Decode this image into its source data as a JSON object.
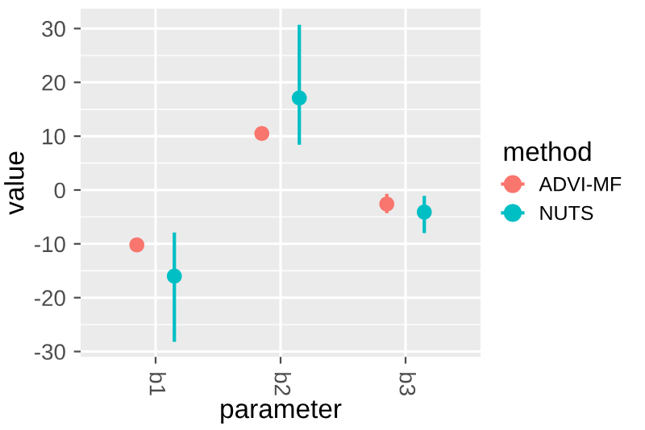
{
  "chart_data": {
    "type": "scatter",
    "xlabel": "parameter",
    "ylabel": "value",
    "legend_title": "method",
    "categories": [
      "b1",
      "b2",
      "b3"
    ],
    "series": [
      {
        "name": "ADVI-MF",
        "color": "#f8766d",
        "values": [
          -10.2,
          10.5,
          -2.6
        ],
        "errors": [
          null,
          null,
          [
            -4.3,
            -0.7
          ]
        ]
      },
      {
        "name": "NUTS",
        "color": "#00bfc4",
        "values": [
          -16.0,
          17.1,
          -4.1
        ],
        "errors": [
          [
            -28.2,
            -7.9
          ],
          [
            8.4,
            30.7
          ],
          [
            -8.0,
            -1.1
          ]
        ]
      }
    ],
    "ylim": [
      -31,
      33.7
    ],
    "yticks": [
      -30,
      -20,
      -10,
      0,
      10,
      20,
      30
    ],
    "grid": true,
    "legend": "right",
    "marker": "circle"
  }
}
